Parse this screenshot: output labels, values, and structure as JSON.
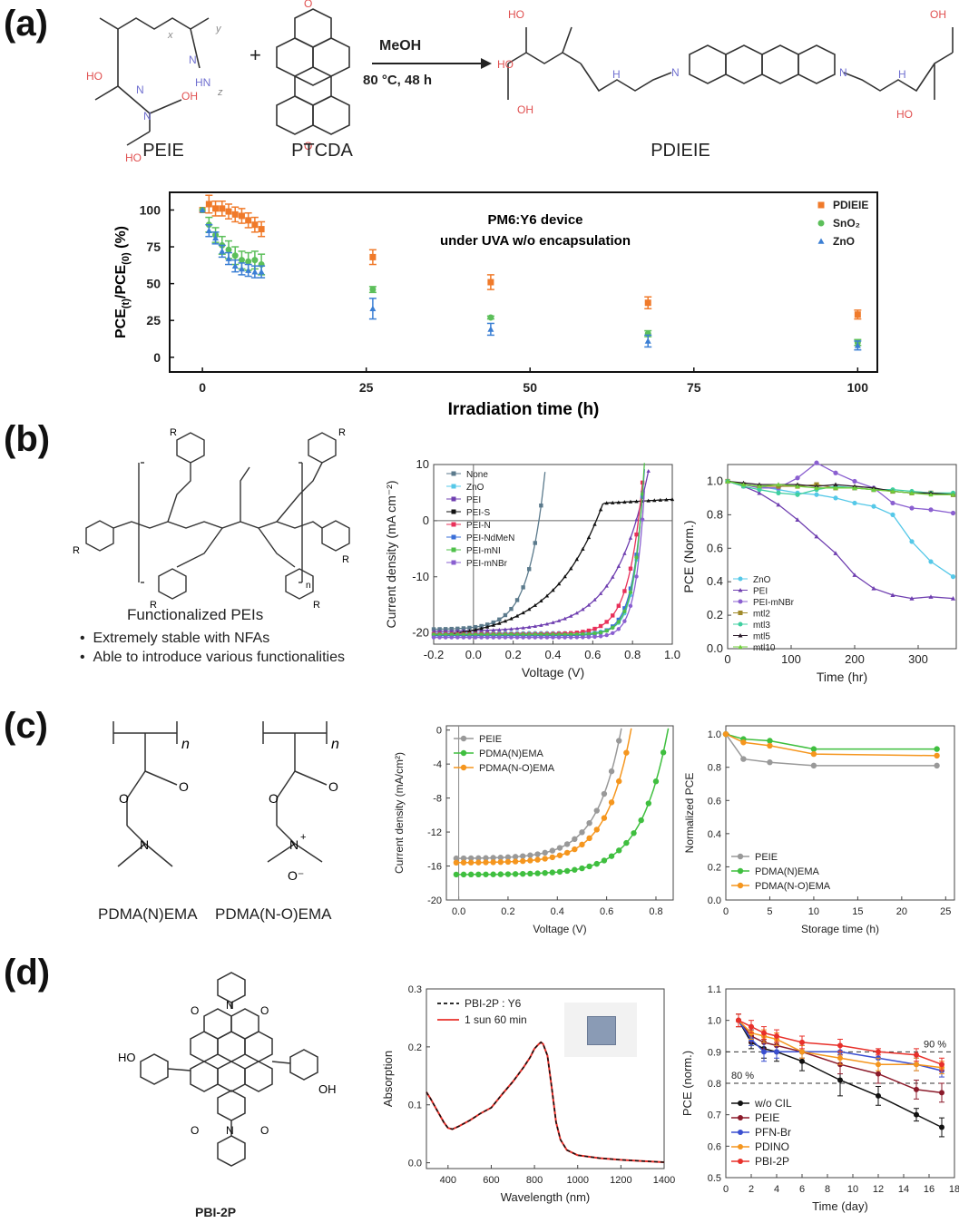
{
  "panels": {
    "a": "(a)",
    "b": "(b)",
    "c": "(c)",
    "d": "(d)"
  },
  "reaction": {
    "reactant1": "PEIE",
    "reactant2": "PTCDA",
    "product": "PDIEIE",
    "solvent": "MeOH",
    "conditions": "80 °C, 48 h"
  },
  "b_text": {
    "caption": "Functionalized PEIs",
    "bullets": [
      "Extremely stable with NFAs",
      "Able to introduce various functionalities"
    ]
  },
  "c_text": {
    "mol1": "PDMA(N)EMA",
    "mol2": "PDMA(N-O)EMA"
  },
  "d_text": {
    "mol": "PBI-2P"
  },
  "colors": {
    "orange": "#f07a2a",
    "green": "#5cbf5a",
    "blue": "#3b7fd4",
    "gray": "#999999",
    "purple": "#7f4fc0",
    "red": "#e83a3a",
    "darkred": "#8b1a2a",
    "black": "#111111"
  },
  "chart_data": [
    {
      "id": "a_stability",
      "type": "scatter",
      "title": "PM6:Y6 device",
      "subtitle": "under UVA w/o encapsulation",
      "xlabel": "Irradiation time (h)",
      "ylabel": "PCE(t)/PCE(0) (%)",
      "xlim": [
        -5,
        103
      ],
      "ylim": [
        -10,
        112
      ],
      "xticks": [
        0,
        25,
        50,
        75,
        100
      ],
      "yticks": [
        0,
        25,
        50,
        75,
        100
      ],
      "legend": "top-right",
      "series": [
        {
          "name": "PDIEIE",
          "color": "#f07a2a",
          "marker": "square",
          "x": [
            0,
            1,
            2,
            3,
            4,
            5,
            6,
            7,
            8,
            9,
            26,
            44,
            68,
            100
          ],
          "y": [
            100,
            104,
            101,
            101,
            99,
            97,
            96,
            93,
            90,
            87,
            68,
            51,
            37,
            29
          ],
          "err": [
            0,
            6,
            5,
            5,
            5,
            5,
            5,
            5,
            5,
            5,
            5,
            5,
            4,
            3
          ]
        },
        {
          "name": "SnO2",
          "color": "#5cbf5a",
          "marker": "circle",
          "x": [
            0,
            1,
            2,
            3,
            4,
            5,
            6,
            7,
            8,
            9,
            26,
            44,
            68,
            100
          ],
          "y": [
            100,
            90,
            83,
            76,
            73,
            69,
            66,
            65,
            66,
            63,
            46,
            27,
            16,
            10
          ],
          "err": [
            0,
            5,
            5,
            6,
            6,
            6,
            6,
            6,
            6,
            7,
            2,
            1,
            2,
            2
          ]
        },
        {
          "name": "ZnO",
          "color": "#3b7fd4",
          "marker": "triangle",
          "x": [
            0,
            1,
            2,
            3,
            4,
            5,
            6,
            7,
            8,
            9,
            26,
            44,
            68,
            100
          ],
          "y": [
            100,
            86,
            81,
            72,
            67,
            62,
            60,
            59,
            58,
            58,
            33,
            19,
            11,
            8
          ],
          "err": [
            0,
            4,
            4,
            4,
            4,
            4,
            4,
            4,
            4,
            4,
            7,
            4,
            4,
            3
          ]
        }
      ]
    },
    {
      "id": "b_jv",
      "type": "line",
      "xlabel": "Voltage (V)",
      "ylabel": "Current density (mA cm⁻²)",
      "xlim": [
        -0.2,
        1.0
      ],
      "ylim": [
        -22,
        10
      ],
      "xticks": [
        "-0.2",
        "0.0",
        "0.2",
        "0.4",
        "0.6",
        "0.8",
        "1.0"
      ],
      "yticks": [
        "10",
        "0",
        "-10",
        "-20"
      ],
      "series": [
        {
          "name": "None",
          "color": "#5b7a8c"
        },
        {
          "name": "ZnO",
          "color": "#55c8e8"
        },
        {
          "name": "PEI",
          "color": "#6f3fb0"
        },
        {
          "name": "PEI-S",
          "color": "#111111"
        },
        {
          "name": "PEI-N",
          "color": "#e8305a"
        },
        {
          "name": "PEI-NdMeN",
          "color": "#3a6fd8"
        },
        {
          "name": "PEI-mNI",
          "color": "#4fc04a"
        },
        {
          "name": "PEI-mNBr",
          "color": "#8a5fd0"
        }
      ]
    },
    {
      "id": "b_stab",
      "type": "line",
      "xlabel": "Time (hr)",
      "ylabel": "PCE (Norm.)",
      "xlim": [
        0,
        360
      ],
      "ylim": [
        0,
        1.1
      ],
      "xticks": [
        "0",
        "100",
        "200",
        "300"
      ],
      "yticks": [
        "0.0",
        "0.2",
        "0.4",
        "0.6",
        "0.8",
        "1.0"
      ],
      "series": [
        {
          "name": "ZnO",
          "color": "#55c8e8",
          "x": [
            0,
            25,
            50,
            80,
            110,
            140,
            170,
            200,
            230,
            260,
            290,
            320,
            355
          ],
          "y": [
            1.0,
            0.98,
            0.97,
            0.95,
            0.93,
            0.92,
            0.9,
            0.87,
            0.85,
            0.8,
            0.64,
            0.52,
            0.43
          ]
        },
        {
          "name": "PEI",
          "color": "#6f3fb0",
          "x": [
            0,
            25,
            50,
            80,
            110,
            140,
            170,
            200,
            230,
            260,
            290,
            320,
            355
          ],
          "y": [
            1.0,
            0.97,
            0.93,
            0.86,
            0.77,
            0.67,
            0.57,
            0.44,
            0.36,
            0.32,
            0.3,
            0.31,
            0.3
          ]
        },
        {
          "name": "PEI-mNBr",
          "color": "#8a5fd0",
          "x": [
            0,
            25,
            50,
            80,
            110,
            140,
            170,
            200,
            230,
            260,
            290,
            320,
            355
          ],
          "y": [
            1.0,
            0.98,
            0.96,
            0.96,
            1.02,
            1.11,
            1.05,
            1.0,
            0.96,
            0.87,
            0.84,
            0.83,
            0.81
          ]
        },
        {
          "name": "mtl2",
          "color": "#a08a2a",
          "x": [
            0,
            25,
            50,
            80,
            110,
            140,
            170,
            200,
            230,
            260,
            290,
            320,
            355
          ],
          "y": [
            1.0,
            0.98,
            0.97,
            0.97,
            0.97,
            0.98,
            0.96,
            0.96,
            0.95,
            0.94,
            0.93,
            0.93,
            0.92
          ]
        },
        {
          "name": "mtl3",
          "color": "#3fcfa0",
          "x": [
            0,
            25,
            50,
            80,
            110,
            140,
            170,
            200,
            230,
            260,
            290,
            320,
            355
          ],
          "y": [
            1.0,
            0.97,
            0.95,
            0.93,
            0.92,
            0.95,
            0.97,
            0.96,
            0.95,
            0.95,
            0.94,
            0.93,
            0.93
          ]
        },
        {
          "name": "mtl5",
          "color": "#2a1a2a",
          "x": [
            0,
            25,
            50,
            80,
            110,
            140,
            170,
            200,
            230,
            260,
            290,
            320,
            355
          ],
          "y": [
            1.0,
            0.99,
            0.98,
            0.98,
            0.98,
            0.97,
            0.98,
            0.97,
            0.96,
            0.94,
            0.93,
            0.93,
            0.92
          ]
        },
        {
          "name": "mtl10",
          "color": "#6fcf3a",
          "x": [
            0,
            25,
            50,
            80,
            110,
            140,
            170,
            200,
            230,
            260,
            290,
            320,
            355
          ],
          "y": [
            1.0,
            0.98,
            0.97,
            0.98,
            0.97,
            0.96,
            0.96,
            0.96,
            0.95,
            0.94,
            0.93,
            0.92,
            0.92
          ]
        }
      ]
    },
    {
      "id": "c_jv",
      "type": "line",
      "xlabel": "Voltage (V)",
      "ylabel": "Current density (mA/cm²)",
      "xlim": [
        -0.05,
        0.87
      ],
      "ylim": [
        -20,
        0.5
      ],
      "xticks": [
        "0.0",
        "0.2",
        "0.4",
        "0.6",
        "0.8"
      ],
      "yticks": [
        "0",
        "-4",
        "-8",
        "-12",
        "-16",
        "-20"
      ],
      "series": [
        {
          "name": "PEIE",
          "color": "#999999",
          "jsc": 15.1,
          "voc": 0.66
        },
        {
          "name": "PDMA(N)EMA",
          "color": "#3fbf3f",
          "jsc": 17.0,
          "voc": 0.85
        },
        {
          "name": "PDMA(N-O)EMA",
          "color": "#f5961e",
          "jsc": 15.6,
          "voc": 0.7
        }
      ]
    },
    {
      "id": "c_stab",
      "type": "line",
      "xlabel": "Storage time (h)",
      "ylabel": "Normalized PCE",
      "xlim": [
        0,
        26
      ],
      "ylim": [
        0,
        1.05
      ],
      "xticks": [
        "0",
        "5",
        "10",
        "15",
        "20",
        "25"
      ],
      "yticks": [
        "0.0",
        "0.2",
        "0.4",
        "0.6",
        "0.8",
        "1.0"
      ],
      "series": [
        {
          "name": "PEIE",
          "color": "#999999",
          "x": [
            0,
            2,
            5,
            10,
            24
          ],
          "y": [
            1.0,
            0.85,
            0.83,
            0.81,
            0.81
          ]
        },
        {
          "name": "PDMA(N)EMA",
          "color": "#3fbf3f",
          "x": [
            0,
            2,
            5,
            10,
            24
          ],
          "y": [
            1.0,
            0.97,
            0.96,
            0.91,
            0.91
          ]
        },
        {
          "name": "PDMA(N-O)EMA",
          "color": "#f5961e",
          "x": [
            0,
            2,
            5,
            10,
            24
          ],
          "y": [
            1.0,
            0.95,
            0.93,
            0.88,
            0.87
          ]
        }
      ]
    },
    {
      "id": "d_abs",
      "type": "line",
      "xlabel": "Wavelength (nm)",
      "ylabel": "Absorption",
      "xlim": [
        300,
        1400
      ],
      "ylim": [
        -0.01,
        0.3
      ],
      "xticks": [
        "400",
        "600",
        "800",
        "1000",
        "1200",
        "1400"
      ],
      "yticks": [
        "0.0",
        "0.1",
        "0.2",
        "0.3"
      ],
      "series": [
        {
          "name": "PBI-2P : Y6",
          "color": "#111111",
          "dash": true
        },
        {
          "name": "1 sun 60 min",
          "color": "#e8302a"
        }
      ],
      "x": [
        300,
        320,
        350,
        380,
        400,
        420,
        450,
        500,
        550,
        600,
        650,
        700,
        750,
        780,
        800,
        820,
        830,
        840,
        860,
        880,
        900,
        920,
        950,
        1000,
        1100,
        1200,
        1300,
        1400
      ],
      "y": [
        0.122,
        0.11,
        0.09,
        0.07,
        0.06,
        0.058,
        0.063,
        0.073,
        0.085,
        0.095,
        0.118,
        0.14,
        0.165,
        0.182,
        0.197,
        0.205,
        0.208,
        0.205,
        0.185,
        0.13,
        0.07,
        0.04,
        0.022,
        0.013,
        0.008,
        0.005,
        0.003,
        0.001
      ]
    },
    {
      "id": "d_stab",
      "type": "line",
      "xlabel": "Time (day)",
      "ylabel": "PCE (norm.)",
      "xlim": [
        0,
        18
      ],
      "ylim": [
        0.5,
        1.1
      ],
      "xticks": [
        "0",
        "2",
        "4",
        "6",
        "8",
        "10",
        "12",
        "14",
        "16",
        "18"
      ],
      "yticks": [
        "0.5",
        "0.6",
        "0.7",
        "0.8",
        "0.9",
        "1.0",
        "1.1"
      ],
      "refs": [
        {
          "y": 0.9,
          "label": "90 %"
        },
        {
          "y": 0.8,
          "label": "80 %"
        }
      ],
      "series": [
        {
          "name": "w/o CIL",
          "color": "#111111",
          "x": [
            1,
            2,
            3,
            4,
            6,
            9,
            12,
            15,
            17
          ],
          "y": [
            1.0,
            0.93,
            0.91,
            0.9,
            0.87,
            0.81,
            0.76,
            0.7,
            0.66
          ],
          "err": [
            0.02,
            0.02,
            0.03,
            0.03,
            0.03,
            0.05,
            0.03,
            0.02,
            0.03
          ]
        },
        {
          "name": "PEIE",
          "color": "#8b1a2a",
          "x": [
            1,
            2,
            3,
            4,
            6,
            9,
            12,
            15,
            17
          ],
          "y": [
            1.0,
            0.95,
            0.93,
            0.92,
            0.9,
            0.86,
            0.83,
            0.78,
            0.77
          ],
          "err": [
            0.02,
            0.02,
            0.02,
            0.02,
            0.02,
            0.03,
            0.03,
            0.03,
            0.03
          ]
        },
        {
          "name": "PFN-Br",
          "color": "#3a4fd0",
          "x": [
            1,
            2,
            3,
            4,
            6,
            9,
            12,
            15,
            17
          ],
          "y": [
            1.0,
            0.94,
            0.9,
            0.9,
            0.9,
            0.9,
            0.88,
            0.86,
            0.84
          ],
          "err": [
            0.02,
            0.02,
            0.03,
            0.02,
            0.02,
            0.02,
            0.02,
            0.02,
            0.02
          ]
        },
        {
          "name": "PDINO",
          "color": "#f5961e",
          "x": [
            1,
            2,
            3,
            4,
            6,
            9,
            12,
            15,
            17
          ],
          "y": [
            1.0,
            0.96,
            0.95,
            0.94,
            0.9,
            0.88,
            0.86,
            0.86,
            0.85
          ],
          "err": [
            0.02,
            0.02,
            0.02,
            0.02,
            0.02,
            0.02,
            0.02,
            0.02,
            0.02
          ]
        },
        {
          "name": "PBI-2P",
          "color": "#e8302a",
          "x": [
            1,
            2,
            3,
            4,
            6,
            9,
            12,
            15,
            17
          ],
          "y": [
            1.0,
            0.98,
            0.96,
            0.95,
            0.93,
            0.92,
            0.9,
            0.89,
            0.86
          ],
          "err": [
            0.02,
            0.02,
            0.02,
            0.02,
            0.02,
            0.02,
            0.01,
            0.02,
            0.02
          ]
        }
      ]
    }
  ]
}
